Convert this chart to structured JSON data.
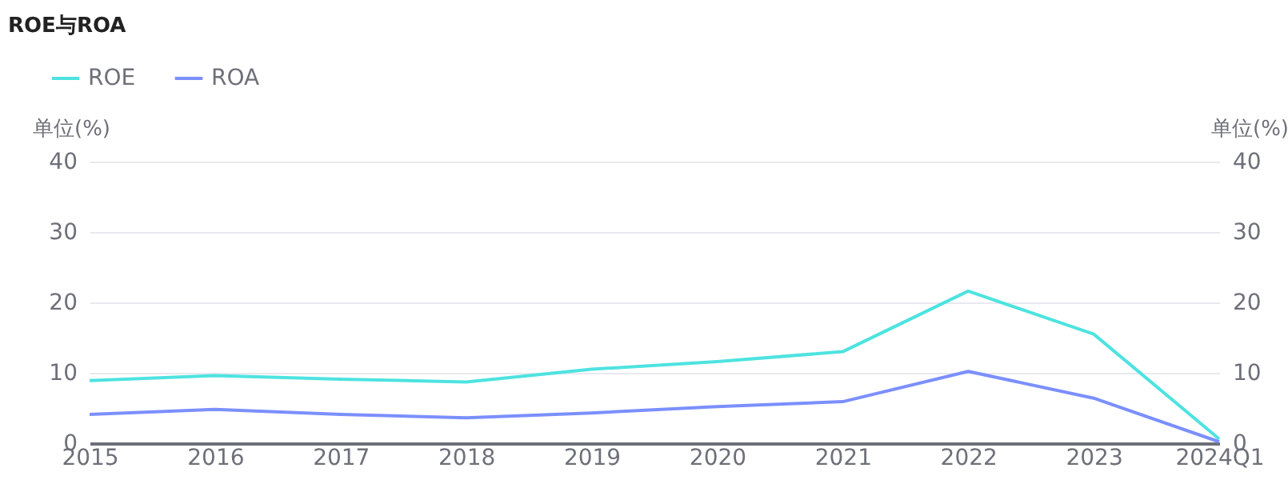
{
  "chart_data": {
    "type": "line",
    "title": "ROE与ROA",
    "ylabel": "单位(%)",
    "y2label": "单位(%)",
    "categories": [
      "2015",
      "2016",
      "2017",
      "2018",
      "2019",
      "2020",
      "2021",
      "2022",
      "2023",
      "2024Q1"
    ],
    "series": [
      {
        "name": "ROE",
        "color": "#4de3e0",
        "values": [
          8.9,
          9.6,
          9.1,
          8.7,
          10.5,
          11.6,
          13.0,
          21.6,
          15.5,
          0.6
        ]
      },
      {
        "name": "ROA",
        "color": "#7b8fff",
        "values": [
          4.1,
          4.8,
          4.1,
          3.6,
          4.3,
          5.2,
          5.9,
          10.2,
          6.4,
          0.2
        ]
      }
    ],
    "ylim": [
      0,
      40
    ],
    "yticks": [
      0,
      10,
      20,
      30,
      40
    ],
    "y2lim": [
      0,
      40
    ],
    "y2ticks": [
      0,
      10,
      20,
      30,
      40
    ],
    "grid": "y",
    "legend": "top left",
    "marker": "none",
    "line_style": "solid"
  }
}
